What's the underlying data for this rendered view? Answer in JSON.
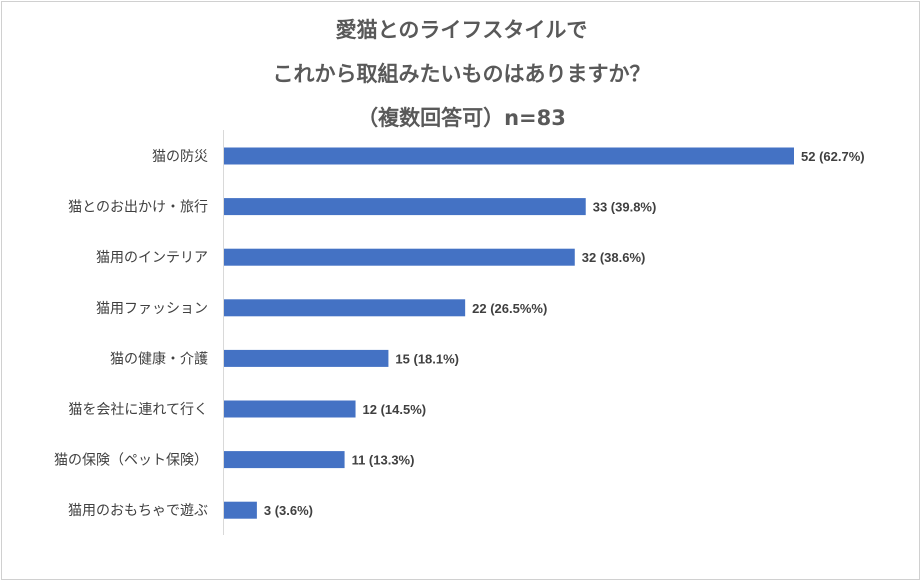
{
  "chart_data": {
    "type": "bar",
    "orientation": "horizontal",
    "title": "愛猫とのライフスタイルでこれから取組みたいものはありますか？（複数回答可）n=83",
    "title_lines": [
      "愛猫とのライフスタイルで",
      "これから取組みたいものはありますか？",
      "（複数回答可）n=83"
    ],
    "categories": [
      "猫の防災",
      "猫とのお出かけ・旅行",
      "猫用のインテリア",
      "猫用ファッション",
      "猫の健康・介護",
      "猫を会社に連れて行く",
      "猫の保険（ペット保険）",
      "猫用のおもちゃで遊ぶ"
    ],
    "values": [
      52,
      33,
      32,
      22,
      15,
      12,
      11,
      3
    ],
    "data_labels": [
      "52 (62.7%)",
      "33 (39.8%)",
      "32 (38.6%)",
      "22 (26.5%%)",
      "15 (18.1%)",
      "12 (14.5%)",
      "11 (13.3%)",
      "3 (3.6%)"
    ],
    "xlim": [
      0,
      52
    ],
    "grid": false,
    "legend": "none",
    "bar_color": "#4472c4"
  }
}
